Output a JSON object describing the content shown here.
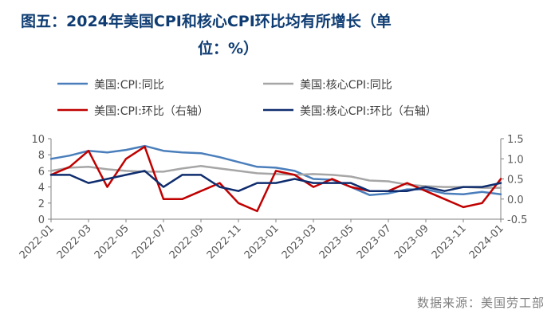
{
  "title_line1": "图五：2024年美国CPI和核心CPI环比均有所增长（单",
  "title_line2": "位：%）",
  "source": "数据来源：美国劳工部",
  "chart_data": {
    "type": "line",
    "x": [
      "2022-01",
      "2022-02",
      "2022-03",
      "2022-04",
      "2022-05",
      "2022-06",
      "2022-07",
      "2022-08",
      "2022-09",
      "2022-10",
      "2022-11",
      "2022-12",
      "2023-01",
      "2023-02",
      "2023-03",
      "2023-04",
      "2023-05",
      "2023-06",
      "2023-07",
      "2023-08",
      "2023-09",
      "2023-10",
      "2023-11",
      "2023-12",
      "2024-01"
    ],
    "x_tick_labels": [
      "2022-01",
      "2022-03",
      "2022-05",
      "2022-07",
      "2022-09",
      "2022-11",
      "2023-01",
      "2023-03",
      "2023-05",
      "2023-07",
      "2023-09",
      "2023-11",
      "2024-01"
    ],
    "left_axis": {
      "ylim": [
        0,
        10
      ],
      "ticks": [
        "0",
        "2",
        "4",
        "6",
        "8",
        "10"
      ]
    },
    "right_axis": {
      "ylim": [
        -0.5,
        1.5
      ],
      "ticks": [
        "-0.5",
        "0.0",
        "0.5",
        "1.0",
        "1.5"
      ]
    },
    "legend_placement": "top",
    "grid": false,
    "series": [
      {
        "name": "美国:CPI:同比",
        "axis": "left",
        "color": "#4a7ebb",
        "values": [
          7.5,
          7.9,
          8.5,
          8.3,
          8.6,
          9.1,
          8.5,
          8.3,
          8.2,
          7.7,
          7.1,
          6.5,
          6.4,
          6.0,
          5.0,
          4.9,
          4.0,
          3.0,
          3.2,
          3.7,
          3.7,
          3.2,
          3.1,
          3.4,
          3.1
        ]
      },
      {
        "name": "美国:核心CPI:同比",
        "axis": "left",
        "color": "#a6a6a6",
        "values": [
          6.0,
          6.4,
          6.5,
          6.2,
          6.0,
          5.9,
          5.9,
          6.3,
          6.6,
          6.3,
          6.0,
          5.7,
          5.6,
          5.5,
          5.6,
          5.5,
          5.3,
          4.8,
          4.7,
          4.3,
          4.1,
          4.0,
          4.0,
          3.9,
          3.9
        ]
      },
      {
        "name": "美国:CPI:环比（右轴）",
        "axis": "right",
        "color": "#c00000",
        "values": [
          0.6,
          0.8,
          1.2,
          0.3,
          1.0,
          1.3,
          0.0,
          0.0,
          0.2,
          0.4,
          -0.1,
          -0.3,
          0.7,
          0.6,
          0.3,
          0.5,
          0.3,
          0.2,
          0.2,
          0.4,
          0.2,
          0.0,
          -0.2,
          -0.1,
          0.5
        ]
      },
      {
        "name": "美国:核心CPI:环比（右轴）",
        "axis": "right",
        "color": "#0f2d6e",
        "values": [
          0.6,
          0.6,
          0.4,
          0.5,
          0.6,
          0.7,
          0.3,
          0.6,
          0.6,
          0.3,
          0.2,
          0.4,
          0.4,
          0.5,
          0.4,
          0.4,
          0.4,
          0.2,
          0.2,
          0.2,
          0.3,
          0.2,
          0.3,
          0.3,
          0.4
        ]
      }
    ]
  }
}
